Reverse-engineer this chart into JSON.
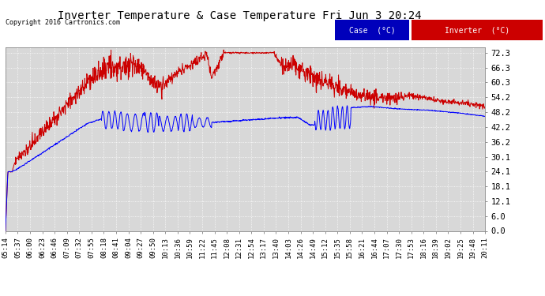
{
  "title": "Inverter Temperature & Case Temperature Fri Jun 3 20:24",
  "copyright": "Copyright 2016 Cartronics.com",
  "legend_case_label": "Case  (°C)",
  "legend_inverter_label": "Inverter  (°C)",
  "case_color": "#0000ff",
  "inverter_color": "#cc0000",
  "legend_case_bg": "#0000bb",
  "legend_inverter_bg": "#cc0000",
  "background_color": "#ffffff",
  "plot_bg_color": "#d8d8d8",
  "grid_color": "#ffffff",
  "yticks": [
    0.0,
    6.0,
    12.1,
    18.1,
    24.1,
    30.1,
    36.2,
    42.2,
    48.2,
    54.2,
    60.3,
    66.3,
    72.3
  ],
  "ylim": [
    0.0,
    74.5
  ],
  "xlabel_fontsize": 6.5,
  "ylabel_fontsize": 7.5,
  "title_fontsize": 10,
  "n_points": 1500,
  "time_labels": [
    "05:14",
    "05:37",
    "06:00",
    "06:23",
    "06:46",
    "07:09",
    "07:32",
    "07:55",
    "08:18",
    "08:41",
    "09:04",
    "09:27",
    "09:50",
    "10:13",
    "10:36",
    "10:59",
    "11:22",
    "11:45",
    "12:08",
    "12:31",
    "12:54",
    "13:17",
    "13:40",
    "14:03",
    "14:26",
    "14:49",
    "15:12",
    "15:35",
    "15:58",
    "16:21",
    "16:44",
    "17:07",
    "17:30",
    "17:53",
    "18:16",
    "18:39",
    "19:02",
    "19:25",
    "19:48",
    "20:11"
  ]
}
